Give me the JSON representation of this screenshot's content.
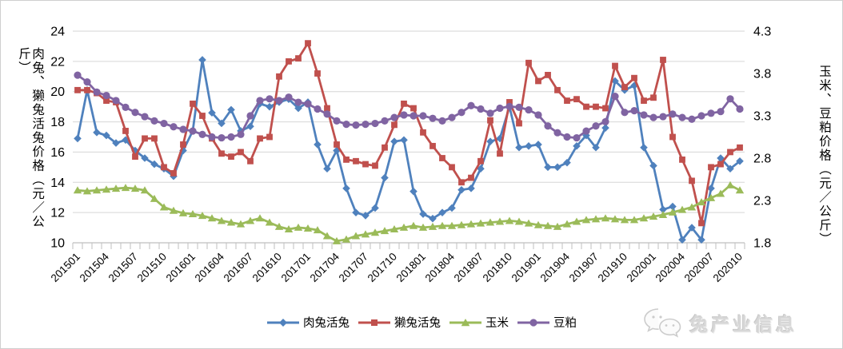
{
  "chart_data": {
    "type": "line",
    "left_axis": {
      "title": "肉兔、獭兔活兔价格（元／公斤）",
      "min": 10,
      "max": 24,
      "step": 2,
      "ticks": [
        "24",
        "22",
        "20",
        "18",
        "16",
        "14",
        "12",
        "10"
      ]
    },
    "right_axis": {
      "title": "玉米、豆粕价格（元／公斤）",
      "min": 1.8,
      "max": 4.3,
      "step": 0.5,
      "ticks": [
        "4.3",
        "3.8",
        "3.3",
        "2.8",
        "2.3",
        "1.8"
      ]
    },
    "x": [
      "201501",
      "201502",
      "201503",
      "201504",
      "201505",
      "201506",
      "201507",
      "201508",
      "201509",
      "201510",
      "201511",
      "201512",
      "201601",
      "201602",
      "201603",
      "201604",
      "201605",
      "201606",
      "201607",
      "201608",
      "201609",
      "201610",
      "201611",
      "201612",
      "201701",
      "201702",
      "201703",
      "201704",
      "201705",
      "201706",
      "201707",
      "201708",
      "201709",
      "201710",
      "201711",
      "201712",
      "201801",
      "201802",
      "201803",
      "201804",
      "201805",
      "201806",
      "201807",
      "201808",
      "201809",
      "201810",
      "201811",
      "201812",
      "201901",
      "201902",
      "201903",
      "201904",
      "201905",
      "201906",
      "201907",
      "201908",
      "201909",
      "201910",
      "201911",
      "201912",
      "202001",
      "202002",
      "202003",
      "202004",
      "202005",
      "202006",
      "202007",
      "202008",
      "202009",
      "202010"
    ],
    "x_tick_labels": [
      "201501",
      "201504",
      "201507",
      "201510",
      "201601",
      "201604",
      "201607",
      "201610",
      "201701",
      "201704",
      "201707",
      "201710",
      "201801",
      "201804",
      "201807",
      "201810",
      "201901",
      "201904",
      "201907",
      "201910",
      "202001",
      "202004",
      "202007",
      "202010"
    ],
    "grid": true,
    "legend_position": "bottom",
    "series": [
      {
        "key": "meat-rabbit-live",
        "name": "肉兔活兔",
        "axis": "left",
        "color": "#4F81BD",
        "marker": "diamond",
        "values": [
          16.9,
          20.1,
          17.3,
          17.1,
          16.6,
          16.8,
          16.1,
          15.6,
          15.2,
          14.9,
          14.4,
          16.1,
          17.4,
          22.1,
          18.6,
          17.9,
          18.8,
          17.4,
          17.7,
          19.2,
          19.0,
          19.3,
          19.5,
          18.9,
          19.3,
          16.5,
          14.9,
          16.1,
          13.6,
          12.0,
          11.8,
          12.3,
          14.3,
          16.7,
          16.8,
          13.4,
          11.9,
          11.6,
          12.0,
          12.3,
          13.5,
          13.6,
          14.9,
          16.7,
          16.9,
          19.0,
          16.3,
          16.4,
          16.5,
          15.0,
          15.0,
          15.3,
          16.4,
          17.1,
          16.3,
          17.6,
          20.7,
          20.1,
          20.4,
          16.3,
          15.1,
          12.2,
          12.4,
          10.2,
          11.0,
          10.2,
          13.6,
          15.6,
          14.9,
          15.4
        ]
      },
      {
        "key": "rex-rabbit-live",
        "name": "獭兔活兔",
        "axis": "left",
        "color": "#C0504D",
        "marker": "square",
        "values": [
          20.1,
          20.1,
          19.9,
          19.4,
          19.3,
          17.4,
          15.7,
          16.9,
          16.9,
          15.0,
          14.6,
          16.5,
          19.2,
          18.4,
          16.9,
          15.9,
          15.7,
          16.0,
          15.4,
          16.9,
          17.0,
          21.0,
          22.0,
          22.2,
          23.2,
          21.2,
          18.9,
          16.5,
          15.5,
          15.4,
          15.2,
          15.1,
          16.3,
          17.8,
          19.2,
          18.9,
          17.3,
          16.4,
          15.6,
          15.0,
          14.0,
          14.3,
          15.4,
          18.1,
          15.9,
          19.3,
          17.9,
          21.9,
          20.7,
          21.1,
          20.1,
          19.4,
          19.5,
          19.0,
          19.0,
          18.9,
          21.7,
          20.3,
          20.9,
          19.4,
          19.6,
          22.1,
          17.0,
          15.5,
          14.1,
          11.3,
          15.0,
          15.2,
          16.0,
          16.3
        ]
      },
      {
        "key": "corn",
        "name": "玉米",
        "axis": "right",
        "color": "#9BBB59",
        "marker": "triangle",
        "values": [
          2.42,
          2.41,
          2.42,
          2.43,
          2.44,
          2.45,
          2.44,
          2.42,
          2.32,
          2.22,
          2.18,
          2.15,
          2.14,
          2.12,
          2.09,
          2.06,
          2.04,
          2.02,
          2.06,
          2.09,
          2.04,
          1.99,
          1.96,
          1.98,
          1.97,
          1.95,
          1.88,
          1.82,
          1.84,
          1.88,
          1.9,
          1.92,
          1.94,
          1.96,
          1.98,
          2.0,
          1.98,
          1.99,
          2.0,
          2.0,
          2.01,
          2.02,
          2.03,
          2.04,
          2.05,
          2.06,
          2.05,
          2.03,
          2.01,
          2.0,
          1.99,
          2.02,
          2.05,
          2.07,
          2.08,
          2.09,
          2.08,
          2.07,
          2.07,
          2.09,
          2.11,
          2.13,
          2.16,
          2.19,
          2.22,
          2.28,
          2.33,
          2.38,
          2.48,
          2.42
        ]
      },
      {
        "key": "soybean-meal",
        "name": "豆粕",
        "axis": "right",
        "color": "#8064A2",
        "marker": "circle",
        "values": [
          3.78,
          3.7,
          3.58,
          3.54,
          3.48,
          3.4,
          3.34,
          3.29,
          3.24,
          3.21,
          3.17,
          3.14,
          3.12,
          3.08,
          3.05,
          3.04,
          3.05,
          3.08,
          3.3,
          3.48,
          3.5,
          3.48,
          3.52,
          3.46,
          3.44,
          3.38,
          3.32,
          3.24,
          3.2,
          3.19,
          3.2,
          3.21,
          3.24,
          3.28,
          3.31,
          3.3,
          3.3,
          3.27,
          3.24,
          3.28,
          3.34,
          3.42,
          3.38,
          3.33,
          3.39,
          3.41,
          3.4,
          3.37,
          3.31,
          3.18,
          3.1,
          3.05,
          3.04,
          3.12,
          3.18,
          3.23,
          3.53,
          3.34,
          3.36,
          3.31,
          3.28,
          3.29,
          3.32,
          3.28,
          3.26,
          3.3,
          3.33,
          3.35,
          3.5,
          3.38
        ]
      }
    ],
    "colors": {
      "grid": "#d6d6d6",
      "axis": "#bfbfbf",
      "text": "#000000"
    },
    "watermark": {
      "icon": "wechat-icon",
      "text": "兔产业信息"
    }
  }
}
